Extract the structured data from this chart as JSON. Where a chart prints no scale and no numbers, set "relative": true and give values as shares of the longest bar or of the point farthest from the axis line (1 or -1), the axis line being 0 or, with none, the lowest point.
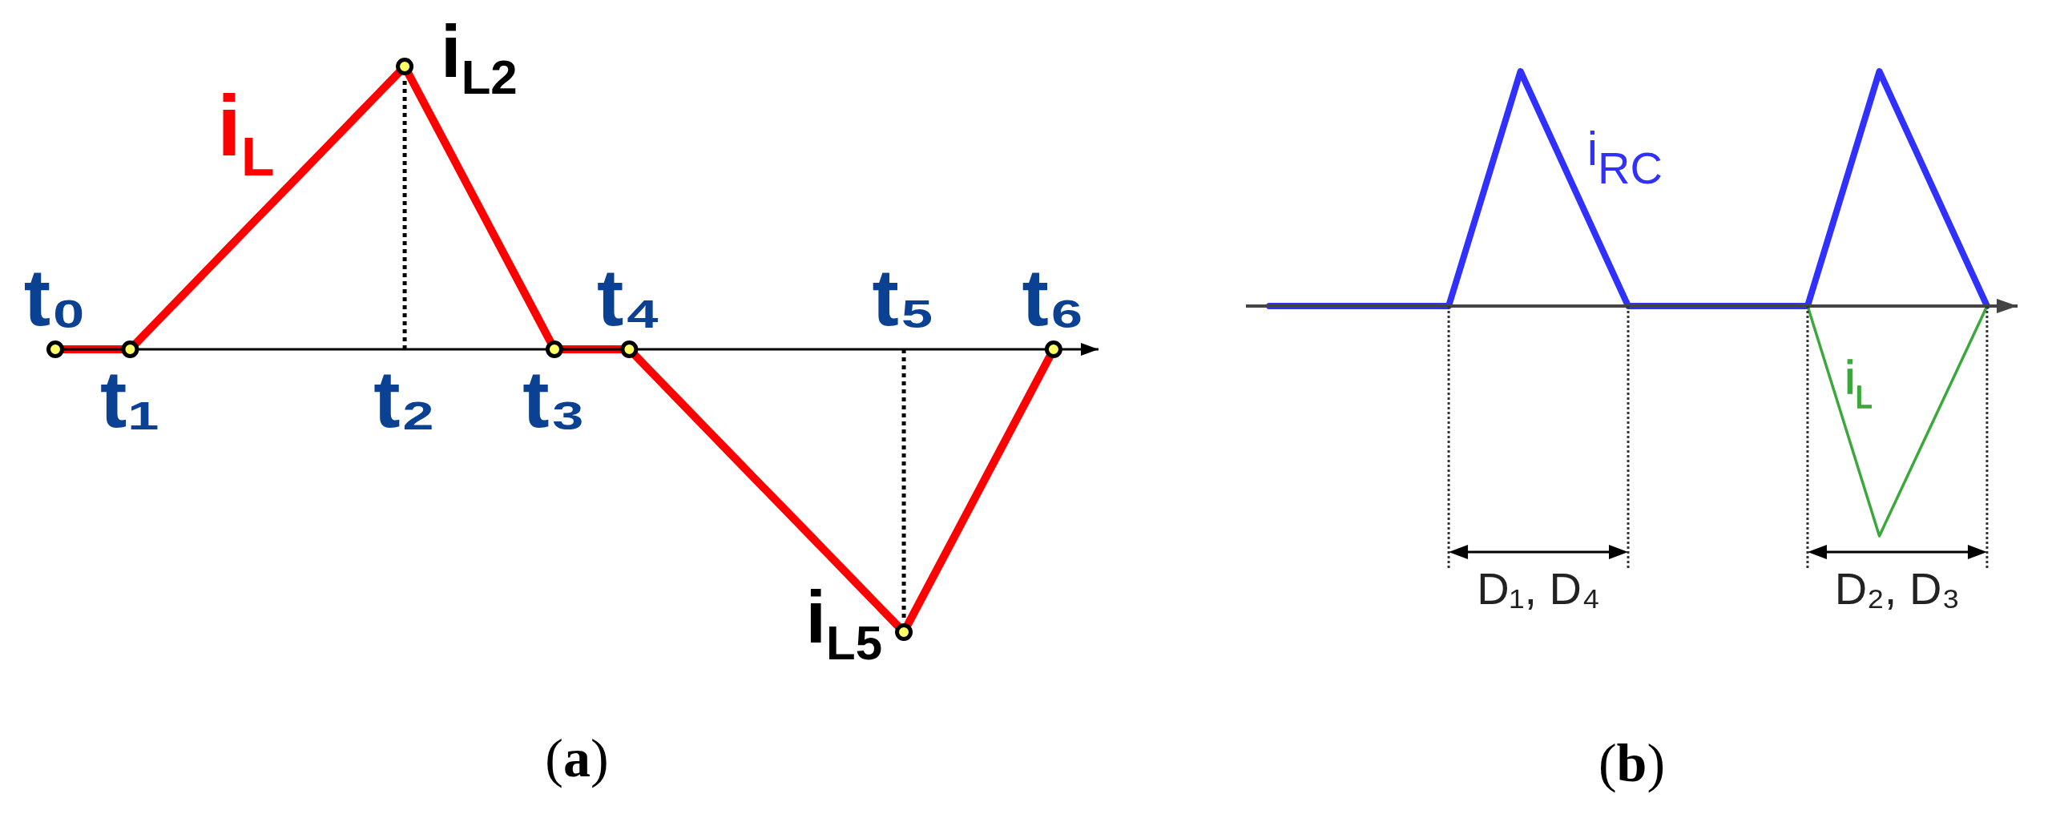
{
  "chart_data": [
    {
      "type": "line",
      "title": "(a)",
      "relative": true,
      "categories": [
        "t₀",
        null,
        null,
        "t₁",
        null,
        null,
        null,
        null,
        null,
        null,
        null,
        null,
        null,
        null,
        "t₂",
        null,
        null,
        null,
        null,
        null,
        "t₃",
        null,
        null,
        "t₄",
        null,
        null,
        null,
        null,
        null,
        null,
        null,
        null,
        null,
        null,
        "t₅",
        null,
        null,
        null,
        null,
        null,
        "t₆"
      ],
      "tick_labels": "x",
      "series": [
        {
          "name": "i$_{L}$",
          "color": "#ff0000",
          "values": [
            0,
            0,
            0,
            0,
            0.091,
            0.182,
            0.273,
            0.364,
            0.455,
            0.545,
            0.636,
            0.727,
            0.818,
            0.909,
            1,
            0.833,
            0.667,
            0.5,
            0.333,
            0.167,
            0,
            0,
            0,
            0,
            -0.091,
            -0.182,
            -0.273,
            -0.364,
            -0.455,
            -0.545,
            -0.636,
            -0.727,
            -0.818,
            -0.909,
            -1,
            -0.833,
            -0.667,
            -0.5,
            -0.333,
            -0.167,
            0
          ]
        },
        {
          "type": "scatter",
          "color": "#ffff66",
          "marker": "circle",
          "x": [
            "t₀",
            "t₁",
            "t₂",
            "t₃",
            "t₄",
            "t₅",
            "t₆"
          ],
          "values": [
            0,
            0,
            1,
            0,
            0,
            -1,
            0
          ]
        }
      ],
      "ref_lines": [
        {
          "axis": "x",
          "value": "t₂",
          "line_style": "dotted",
          "color": "#000000"
        },
        {
          "axis": "x",
          "value": "t₅",
          "line_style": "dotted",
          "color": "#000000"
        }
      ],
      "annotations": [
        {
          "text": "i$_{L2}$",
          "x": "t₂",
          "y": 1
        },
        {
          "text": "i$_{L5}$",
          "x": "t₅",
          "y": -1
        }
      ]
    },
    {
      "type": "line",
      "title": "(b)",
      "relative": true,
      "categories": [
        null,
        null,
        null,
        null,
        null,
        null,
        null,
        null,
        null,
        null,
        null,
        null,
        null,
        null,
        null,
        null,
        null,
        null,
        null,
        null,
        null
      ],
      "tick_labels": false,
      "series": [
        {
          "name": "i$_{RC}$",
          "color": "#3030ff",
          "values": [
            0,
            0,
            0,
            0,
            0,
            0,
            0.5,
            1,
            0.667,
            0.333,
            0,
            0,
            0,
            0,
            0,
            0,
            0.5,
            1,
            0.667,
            0.333,
            0
          ]
        },
        {
          "name": "i$_{L}$",
          "color": "#3aa83a",
          "values": [
            null,
            null,
            null,
            null,
            null,
            null,
            null,
            null,
            null,
            null,
            null,
            null,
            null,
            null,
            null,
            0,
            -0.49,
            -0.98,
            -0.653,
            -0.327,
            0
          ]
        }
      ],
      "annotations": [
        "D₁, D₄",
        "D₂, D₃"
      ]
    }
  ]
}
